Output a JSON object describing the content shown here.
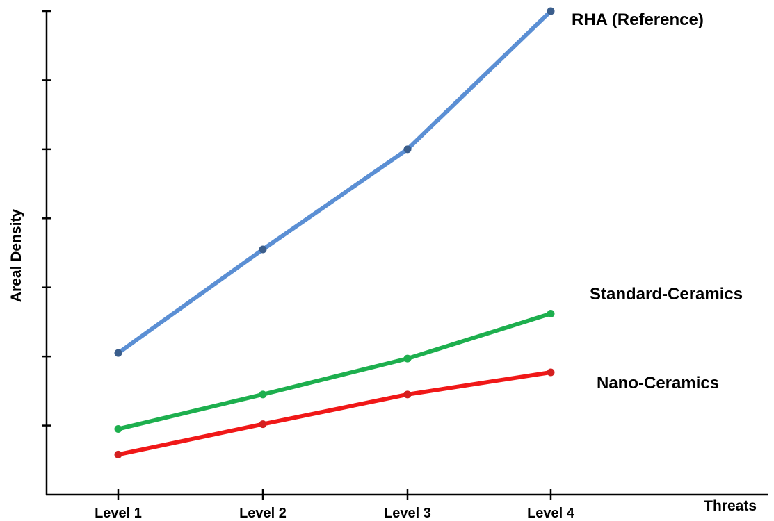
{
  "chart_data": {
    "type": "line",
    "title": "",
    "xlabel": "Threats",
    "ylabel": "Areal Density",
    "categories": [
      "Level 1",
      "Level 2",
      "Level 3",
      "Level 4"
    ],
    "ylim": [
      0,
      7
    ],
    "y_ticks": 7,
    "grid": false,
    "series": [
      {
        "name": "RHA (Reference)",
        "color": "#5B8FD4",
        "marker_color": "#3B5E8C",
        "values": [
          2.05,
          3.55,
          5.0,
          7.0
        ]
      },
      {
        "name": "Standard-Ceramics",
        "color": "#1DAF4E",
        "marker_color": "#1DAF4E",
        "values": [
          0.95,
          1.45,
          1.97,
          2.62
        ]
      },
      {
        "name": "Nano-Ceramics",
        "color": "#F01818",
        "marker_color": "#D42020",
        "values": [
          0.58,
          1.02,
          1.45,
          1.77
        ]
      }
    ]
  }
}
